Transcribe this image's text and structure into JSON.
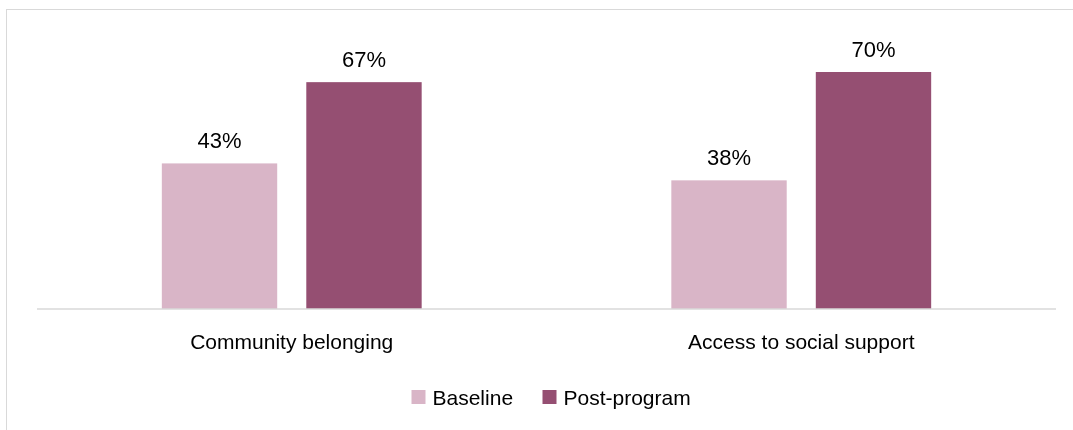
{
  "chart_data": {
    "type": "bar",
    "categories": [
      "Community belonging",
      "Access to social support"
    ],
    "series": [
      {
        "name": "Baseline",
        "color": "#d9b5c7",
        "values": [
          43,
          38
        ],
        "value_labels": [
          "43%",
          "38%"
        ]
      },
      {
        "name": "Post-program",
        "color": "#954f72",
        "values": [
          67,
          70
        ],
        "value_labels": [
          "67%",
          "70%"
        ]
      }
    ],
    "legend": "bottom"
  }
}
